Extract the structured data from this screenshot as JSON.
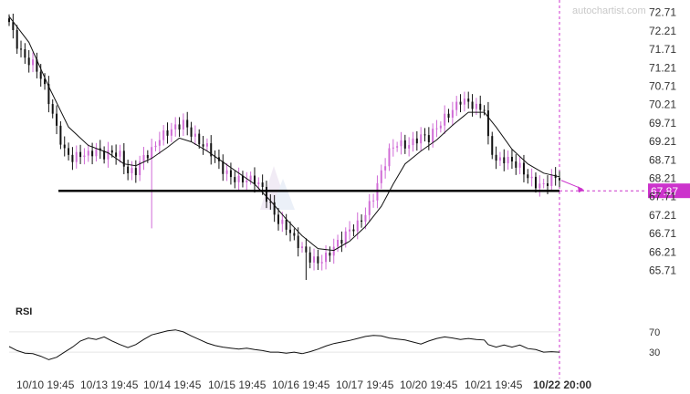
{
  "watermark": "autochartist.com",
  "chart_data": {
    "type": "candlestick",
    "price_axis": {
      "ticks": [
        72.71,
        72.21,
        71.71,
        71.21,
        70.71,
        70.21,
        69.71,
        69.21,
        68.71,
        68.21,
        67.71,
        67.21,
        66.71,
        66.21,
        65.71
      ],
      "ylim": [
        65.35,
        72.85
      ]
    },
    "time_axis": {
      "labels": [
        "10/10 19:45",
        "10/13 19:45",
        "10/14 19:45",
        "10/15 19:45",
        "10/16 19:45",
        "10/17 19:45",
        "10/20 19:45",
        "10/21 19:45",
        "10/22 20:00"
      ],
      "highlighted_label": "10/22 20:00"
    },
    "support_level": {
      "value": 67.87,
      "label": "67.87"
    },
    "forecast_color": "#cc33cc",
    "up_color": "#d06bd6",
    "down_color": "#111111",
    "close_points": [
      [
        0,
        72.45
      ],
      [
        2,
        71.9
      ],
      [
        4,
        71.5
      ],
      [
        6,
        71.3
      ],
      [
        8,
        70.9
      ],
      [
        10,
        70.3
      ],
      [
        12,
        69.6
      ],
      [
        14,
        69.0
      ],
      [
        16,
        68.75
      ],
      [
        18,
        68.8
      ],
      [
        20,
        68.8
      ],
      [
        22,
        69.0
      ],
      [
        24,
        68.9
      ],
      [
        26,
        68.95
      ],
      [
        28,
        68.8
      ],
      [
        30,
        68.3
      ],
      [
        32,
        68.4
      ],
      [
        34,
        68.85
      ],
      [
        36,
        69.0
      ],
      [
        38,
        69.3
      ],
      [
        40,
        69.4
      ],
      [
        42,
        69.55
      ],
      [
        44,
        69.75
      ],
      [
        46,
        69.5
      ],
      [
        48,
        69.2
      ],
      [
        50,
        69.0
      ],
      [
        52,
        68.7
      ],
      [
        54,
        68.45
      ],
      [
        56,
        68.3
      ],
      [
        58,
        68.2
      ],
      [
        60,
        68.15
      ],
      [
        62,
        68.1
      ],
      [
        64,
        67.9
      ],
      [
        66,
        67.5
      ],
      [
        68,
        67.1
      ],
      [
        70,
        66.9
      ],
      [
        72,
        66.5
      ],
      [
        74,
        66.25
      ],
      [
        76,
        66.05
      ],
      [
        78,
        66.0
      ],
      [
        80,
        66.1
      ],
      [
        82,
        66.3
      ],
      [
        84,
        66.5
      ],
      [
        86,
        66.8
      ],
      [
        88,
        67.0
      ],
      [
        90,
        67.3
      ],
      [
        92,
        67.7
      ],
      [
        94,
        68.3
      ],
      [
        96,
        68.9
      ],
      [
        98,
        69.2
      ],
      [
        100,
        69.15
      ],
      [
        102,
        69.2
      ],
      [
        104,
        69.3
      ],
      [
        106,
        69.25
      ],
      [
        108,
        69.6
      ],
      [
        110,
        69.9
      ],
      [
        112,
        70.1
      ],
      [
        114,
        70.3
      ],
      [
        116,
        70.2
      ],
      [
        118,
        70.1
      ],
      [
        120,
        70.15
      ],
      [
        121,
        69.3
      ],
      [
        123,
        68.7
      ],
      [
        125,
        68.7
      ],
      [
        127,
        68.6
      ],
      [
        129,
        68.5
      ],
      [
        131,
        68.3
      ],
      [
        133,
        68.1
      ],
      [
        135,
        68.0
      ],
      [
        137,
        68.15
      ],
      [
        139,
        68.2
      ]
    ],
    "moving_average": [
      [
        0,
        72.6
      ],
      [
        5,
        71.9
      ],
      [
        10,
        70.7
      ],
      [
        15,
        69.6
      ],
      [
        20,
        69.1
      ],
      [
        25,
        68.9
      ],
      [
        29,
        68.6
      ],
      [
        32,
        68.55
      ],
      [
        36,
        68.75
      ],
      [
        40,
        69.05
      ],
      [
        43,
        69.3
      ],
      [
        46,
        69.2
      ],
      [
        50,
        68.95
      ],
      [
        54,
        68.65
      ],
      [
        58,
        68.35
      ],
      [
        62,
        68.05
      ],
      [
        66,
        67.6
      ],
      [
        70,
        67.1
      ],
      [
        74,
        66.65
      ],
      [
        78,
        66.3
      ],
      [
        82,
        66.25
      ],
      [
        86,
        66.5
      ],
      [
        90,
        66.9
      ],
      [
        94,
        67.45
      ],
      [
        97,
        68.05
      ],
      [
        100,
        68.6
      ],
      [
        104,
        68.95
      ],
      [
        108,
        69.25
      ],
      [
        112,
        69.65
      ],
      [
        116,
        70.0
      ],
      [
        120,
        70.0
      ],
      [
        123,
        69.6
      ],
      [
        127,
        69.0
      ],
      [
        131,
        68.6
      ],
      [
        135,
        68.35
      ],
      [
        139,
        68.25
      ]
    ],
    "rsi": {
      "title": "RSI",
      "levels": [
        70,
        30
      ],
      "ylim": [
        5,
        95
      ],
      "points": [
        [
          0,
          41
        ],
        [
          2,
          33
        ],
        [
          4,
          28
        ],
        [
          6,
          27
        ],
        [
          8,
          22
        ],
        [
          10,
          15
        ],
        [
          12,
          20
        ],
        [
          14,
          30
        ],
        [
          16,
          40
        ],
        [
          18,
          52
        ],
        [
          20,
          58
        ],
        [
          22,
          55
        ],
        [
          24,
          60
        ],
        [
          26,
          52
        ],
        [
          28,
          45
        ],
        [
          30,
          39
        ],
        [
          32,
          45
        ],
        [
          34,
          55
        ],
        [
          36,
          64
        ],
        [
          38,
          68
        ],
        [
          40,
          72
        ],
        [
          42,
          74
        ],
        [
          44,
          70
        ],
        [
          46,
          62
        ],
        [
          48,
          55
        ],
        [
          50,
          48
        ],
        [
          52,
          43
        ],
        [
          54,
          40
        ],
        [
          56,
          38
        ],
        [
          58,
          36
        ],
        [
          60,
          38
        ],
        [
          62,
          35
        ],
        [
          64,
          33
        ],
        [
          66,
          30
        ],
        [
          68,
          30
        ],
        [
          70,
          28
        ],
        [
          72,
          30
        ],
        [
          74,
          27
        ],
        [
          76,
          31
        ],
        [
          78,
          36
        ],
        [
          80,
          42
        ],
        [
          82,
          47
        ],
        [
          84,
          50
        ],
        [
          86,
          53
        ],
        [
          88,
          57
        ],
        [
          90,
          61
        ],
        [
          92,
          63
        ],
        [
          94,
          62
        ],
        [
          96,
          58
        ],
        [
          98,
          56
        ],
        [
          100,
          54
        ],
        [
          102,
          50
        ],
        [
          104,
          46
        ],
        [
          106,
          52
        ],
        [
          108,
          57
        ],
        [
          110,
          60
        ],
        [
          112,
          58
        ],
        [
          114,
          55
        ],
        [
          116,
          57
        ],
        [
          118,
          55
        ],
        [
          120,
          54
        ],
        [
          121,
          45
        ],
        [
          123,
          40
        ],
        [
          125,
          44
        ],
        [
          127,
          40
        ],
        [
          129,
          44
        ],
        [
          131,
          37
        ],
        [
          133,
          35
        ],
        [
          135,
          30
        ],
        [
          137,
          31
        ],
        [
          139,
          30
        ]
      ]
    }
  }
}
